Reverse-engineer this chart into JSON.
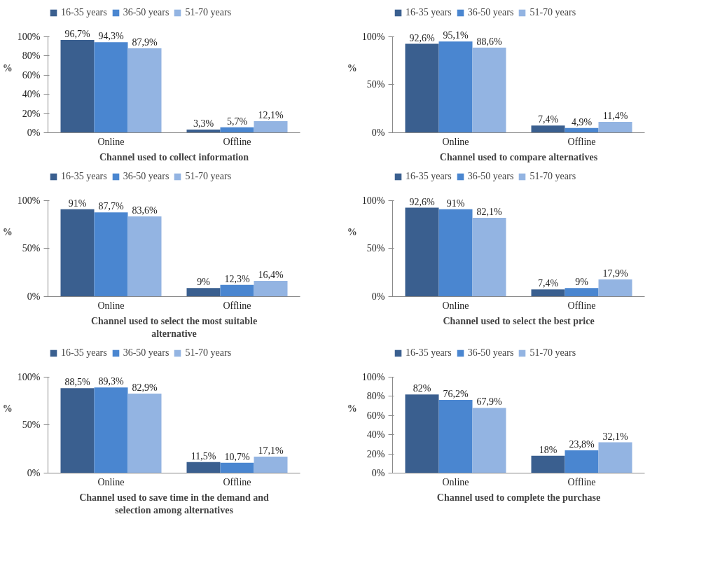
{
  "chart_data": [
    {
      "type": "bar",
      "xlabel": "Channel used to collect information",
      "ylabel": "%",
      "categories": [
        "Online",
        "Offline"
      ],
      "ylim": [
        0,
        100
      ],
      "yticks": [
        {
          "value": 0,
          "label": "0%"
        },
        {
          "value": 20,
          "label": "20%"
        },
        {
          "value": 40,
          "label": "40%"
        },
        {
          "value": 60,
          "label": "60%"
        },
        {
          "value": 80,
          "label": "80%"
        },
        {
          "value": 100,
          "label": "100%"
        }
      ],
      "legend": "top",
      "grid": false,
      "series": [
        {
          "name": "16-35 years",
          "color": "#3a5f8f",
          "values": [
            96.7,
            3.3
          ],
          "value_labels": [
            "96,7%",
            "3,3%"
          ]
        },
        {
          "name": "36-50 years",
          "color": "#4a86d0",
          "values": [
            94.3,
            5.7
          ],
          "value_labels": [
            "94,3%",
            "5,7%"
          ]
        },
        {
          "name": "51-70 years",
          "color": "#93b4e2",
          "values": [
            87.9,
            12.1
          ],
          "value_labels": [
            "87,9%",
            "12,1%"
          ]
        }
      ]
    },
    {
      "type": "bar",
      "xlabel": "Channel used to compare alternatives",
      "ylabel": "%",
      "categories": [
        "Online",
        "Offline"
      ],
      "ylim": [
        0,
        100
      ],
      "yticks": [
        {
          "value": 0,
          "label": "0%"
        },
        {
          "value": 50,
          "label": "50%"
        },
        {
          "value": 100,
          "label": "100%"
        }
      ],
      "legend": "top",
      "grid": false,
      "series": [
        {
          "name": "16-35 years",
          "color": "#3a5f8f",
          "values": [
            92.6,
            7.4
          ],
          "value_labels": [
            "92,6%",
            "7,4%"
          ]
        },
        {
          "name": "36-50 years",
          "color": "#4a86d0",
          "values": [
            95.1,
            4.9
          ],
          "value_labels": [
            "95,1%",
            "4,9%"
          ]
        },
        {
          "name": "51-70 years",
          "color": "#93b4e2",
          "values": [
            88.6,
            11.4
          ],
          "value_labels": [
            "88,6%",
            "11,4%"
          ]
        }
      ]
    },
    {
      "type": "bar",
      "xlabel": "Channel used to select the most suitable alternative",
      "ylabel": "%",
      "categories": [
        "Online",
        "Offline"
      ],
      "ylim": [
        0,
        100
      ],
      "yticks": [
        {
          "value": 0,
          "label": "0%"
        },
        {
          "value": 50,
          "label": "50%"
        },
        {
          "value": 100,
          "label": "100%"
        }
      ],
      "legend": "top",
      "grid": false,
      "series": [
        {
          "name": "16-35 years",
          "color": "#3a5f8f",
          "values": [
            91,
            9
          ],
          "value_labels": [
            "91%",
            "9%"
          ]
        },
        {
          "name": "36-50 years",
          "color": "#4a86d0",
          "values": [
            87.7,
            12.3
          ],
          "value_labels": [
            "87,7%",
            "12,3%"
          ]
        },
        {
          "name": "51-70 years",
          "color": "#93b4e2",
          "values": [
            83.6,
            16.4
          ],
          "value_labels": [
            "83,6%",
            "16,4%"
          ]
        }
      ]
    },
    {
      "type": "bar",
      "xlabel": "Channel used to select the best price",
      "ylabel": "%",
      "categories": [
        "Online",
        "Offline"
      ],
      "ylim": [
        0,
        100
      ],
      "yticks": [
        {
          "value": 0,
          "label": "0%"
        },
        {
          "value": 50,
          "label": "50%"
        },
        {
          "value": 100,
          "label": "100%"
        }
      ],
      "legend": "top",
      "grid": false,
      "series": [
        {
          "name": "16-35 years",
          "color": "#3a5f8f",
          "values": [
            92.6,
            7.4
          ],
          "value_labels": [
            "92,6%",
            "7,4%"
          ]
        },
        {
          "name": "36-50 years",
          "color": "#4a86d0",
          "values": [
            91,
            9
          ],
          "value_labels": [
            "91%",
            "9%"
          ]
        },
        {
          "name": "51-70 years",
          "color": "#93b4e2",
          "values": [
            82.1,
            17.9
          ],
          "value_labels": [
            "82,1%",
            "17,9%"
          ]
        }
      ]
    },
    {
      "type": "bar",
      "xlabel": "Channel used to save time in the demand and selection among alternatives",
      "ylabel": "%",
      "categories": [
        "Online",
        "Offline"
      ],
      "ylim": [
        0,
        100
      ],
      "yticks": [
        {
          "value": 0,
          "label": "0%"
        },
        {
          "value": 50,
          "label": "50%"
        },
        {
          "value": 100,
          "label": "100%"
        }
      ],
      "legend": "top",
      "grid": false,
      "series": [
        {
          "name": "16-35 years",
          "color": "#3a5f8f",
          "values": [
            88.5,
            11.5
          ],
          "value_labels": [
            "88,5%",
            "11,5%"
          ]
        },
        {
          "name": "36-50 years",
          "color": "#4a86d0",
          "values": [
            89.3,
            10.7
          ],
          "value_labels": [
            "89,3%",
            "10,7%"
          ]
        },
        {
          "name": "51-70 years",
          "color": "#93b4e2",
          "values": [
            82.9,
            17.1
          ],
          "value_labels": [
            "82,9%",
            "17,1%"
          ]
        }
      ]
    },
    {
      "type": "bar",
      "xlabel": "Channel used to complete the purchase",
      "ylabel": "%",
      "categories": [
        "Online",
        "Offline"
      ],
      "ylim": [
        0,
        100
      ],
      "yticks": [
        {
          "value": 0,
          "label": "0%"
        },
        {
          "value": 20,
          "label": "20%"
        },
        {
          "value": 40,
          "label": "40%"
        },
        {
          "value": 60,
          "label": "60%"
        },
        {
          "value": 80,
          "label": "80%"
        },
        {
          "value": 100,
          "label": "100%"
        }
      ],
      "legend": "top",
      "grid": false,
      "series": [
        {
          "name": "16-35 years",
          "color": "#3a5f8f",
          "values": [
            82,
            18
          ],
          "value_labels": [
            "82%",
            "18%"
          ]
        },
        {
          "name": "36-50 years",
          "color": "#4a86d0",
          "values": [
            76.2,
            23.8
          ],
          "value_labels": [
            "76,2%",
            "23,8%"
          ]
        },
        {
          "name": "51-70 years",
          "color": "#93b4e2",
          "values": [
            67.9,
            32.1
          ],
          "value_labels": [
            "67,9%",
            "32,1%"
          ]
        }
      ]
    }
  ]
}
